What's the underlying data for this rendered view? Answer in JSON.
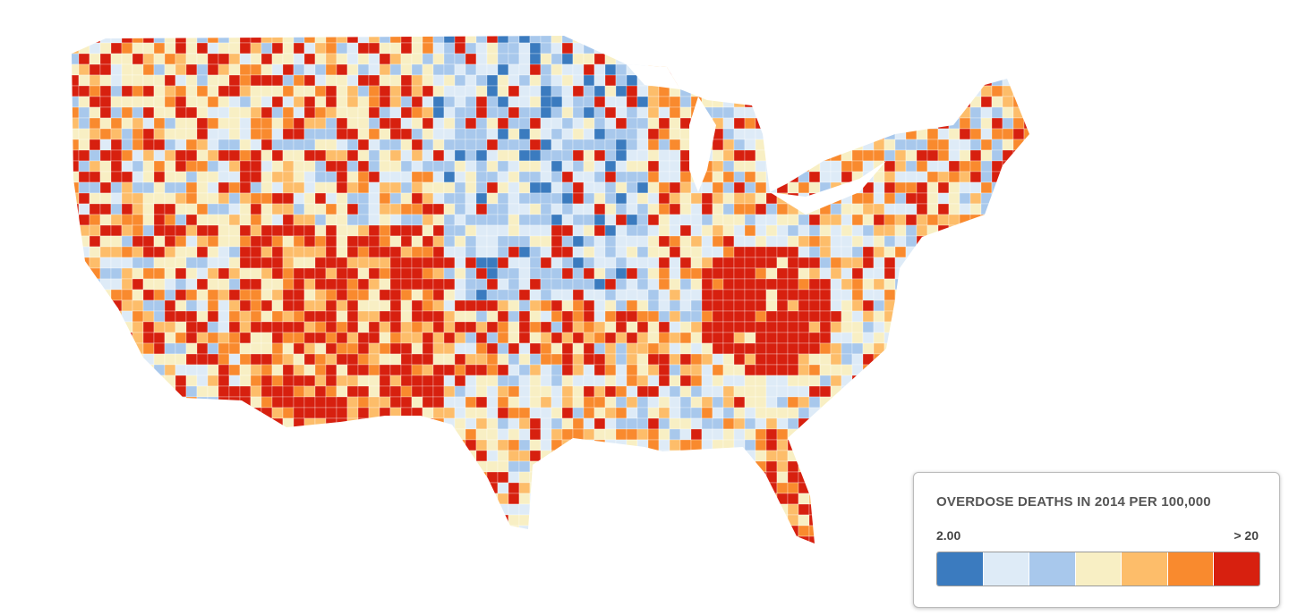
{
  "legend": {
    "title": "OVERDOSE DEATHS IN 2014 PER 100,000",
    "min_label": "2.00",
    "max_label": "> 20",
    "colors": [
      "#3b7bbf",
      "#deebf7",
      "#a8c8ec",
      "#f8efc4",
      "#fdbd6a",
      "#f98a2e",
      "#d7200f"
    ]
  }
}
